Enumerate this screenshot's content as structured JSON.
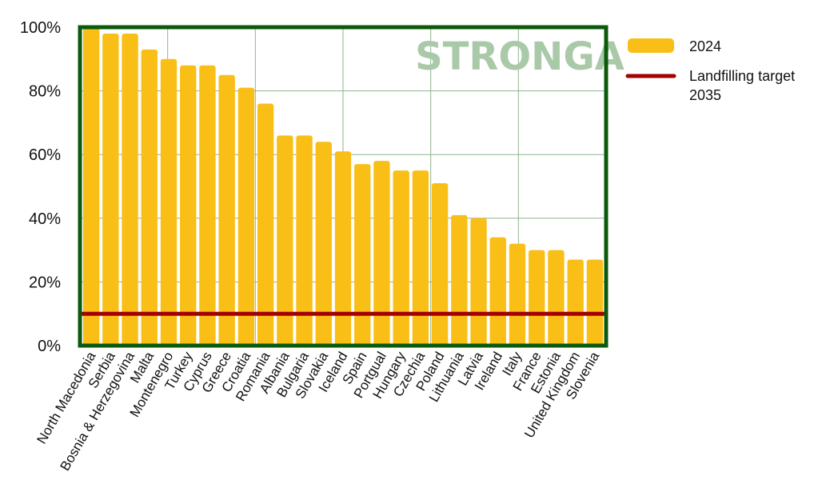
{
  "chart_data": {
    "type": "bar",
    "categories": [
      "North Macedonia",
      "Serbia",
      "Bosnia & Herzegovina",
      "Malta",
      "Montenegro",
      "Turkey",
      "Cyprus",
      "Greece",
      "Croatia",
      "Romania",
      "Albania",
      "Bulgaria",
      "Slovakia",
      "Iceland",
      "Spain",
      "Portgual",
      "Hungary",
      "Czechia",
      "Poland",
      "Lithuania",
      "Latvia",
      "Ireland",
      "Italy",
      "France",
      "Estonia",
      "United Kingdom",
      "Slovenia"
    ],
    "series": [
      {
        "name": "2024",
        "values": [
          100,
          98,
          98,
          93,
          90,
          88,
          88,
          85,
          81,
          76,
          66,
          66,
          64,
          61,
          57,
          58,
          55,
          55,
          51,
          41,
          40,
          34,
          32,
          30,
          30,
          27,
          27
        ]
      }
    ],
    "target_line": {
      "name": "Landfilling target 2035",
      "value": 10
    },
    "ylim": [
      0,
      100
    ],
    "yticks": [
      "0%",
      "20%",
      "40%",
      "60%",
      "80%",
      "100%"
    ],
    "ytick_values": [
      0,
      20,
      40,
      60,
      80,
      100
    ],
    "grid": true,
    "legend_position": "right",
    "legend": [
      {
        "label": "2024",
        "type": "bar"
      },
      {
        "label": "Landfilling target",
        "label_line2": "2035",
        "type": "line"
      }
    ],
    "colors": {
      "bar": "#F9BF17",
      "target": "#A30000",
      "frame": "#0B5A0B",
      "grid": "#8FB58F",
      "watermark": "#A9C9A9"
    }
  },
  "watermark": "STRONGA"
}
